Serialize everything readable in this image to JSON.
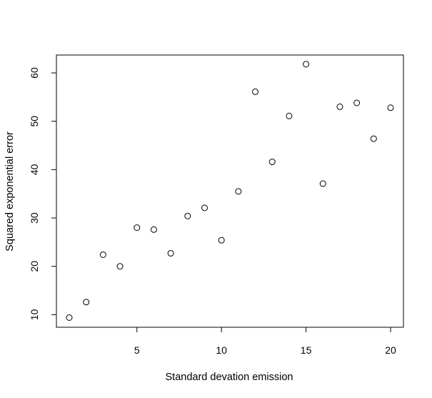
{
  "chart_data": {
    "type": "scatter",
    "title": "",
    "xlabel": "Standard devation emission",
    "ylabel": "Squared exponential error",
    "xlim": [
      0.24,
      20.76
    ],
    "ylim": [
      7.4,
      63.7
    ],
    "xticks": [
      5,
      10,
      15,
      20
    ],
    "yticks": [
      10,
      20,
      30,
      40,
      50,
      60
    ],
    "grid": false,
    "marker": "open-circle",
    "points": [
      {
        "x": 1,
        "y": 9.4
      },
      {
        "x": 2,
        "y": 12.6
      },
      {
        "x": 3,
        "y": 22.4
      },
      {
        "x": 4,
        "y": 20.0
      },
      {
        "x": 5,
        "y": 28.0
      },
      {
        "x": 6,
        "y": 27.6
      },
      {
        "x": 7,
        "y": 22.7
      },
      {
        "x": 8,
        "y": 30.4
      },
      {
        "x": 9,
        "y": 32.1
      },
      {
        "x": 10,
        "y": 25.4
      },
      {
        "x": 11,
        "y": 35.5
      },
      {
        "x": 12,
        "y": 56.1
      },
      {
        "x": 13,
        "y": 41.6
      },
      {
        "x": 14,
        "y": 51.1
      },
      {
        "x": 15,
        "y": 61.8
      },
      {
        "x": 16,
        "y": 37.1
      },
      {
        "x": 17,
        "y": 53.0
      },
      {
        "x": 18,
        "y": 53.8
      },
      {
        "x": 19,
        "y": 46.4
      },
      {
        "x": 20,
        "y": 52.8
      }
    ]
  }
}
